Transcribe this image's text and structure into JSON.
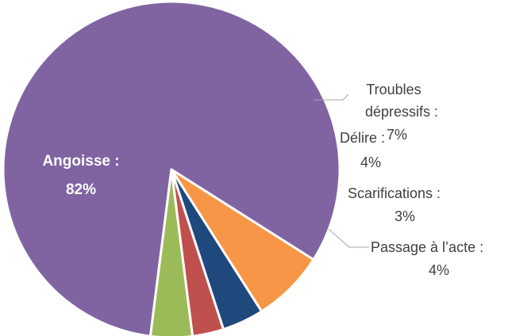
{
  "chart_data": {
    "type": "pie",
    "title": "",
    "slices": [
      {
        "name": "Angoisse",
        "value": 82,
        "label_name": "Angoisse :",
        "label_value": "82%",
        "color": "#8064A2"
      },
      {
        "name": "Troubles dépressifs",
        "value": 7,
        "label_line1": "Troubles",
        "label_line2": "dépressifs :",
        "label_value": "7%",
        "color": "#F79646"
      },
      {
        "name": "Délire",
        "value": 4,
        "label_name": "Délire :",
        "label_value": "4%",
        "color": "#1F497D"
      },
      {
        "name": "Scarifications",
        "value": 3,
        "label_name": "Scarifications :",
        "label_value": "3%",
        "color": "#C0504D"
      },
      {
        "name": "Passage à l’acte",
        "value": 4,
        "label_name": "Passage à l’acte :",
        "label_value": "4%",
        "color": "#9BBB59"
      }
    ],
    "legend": "none"
  }
}
